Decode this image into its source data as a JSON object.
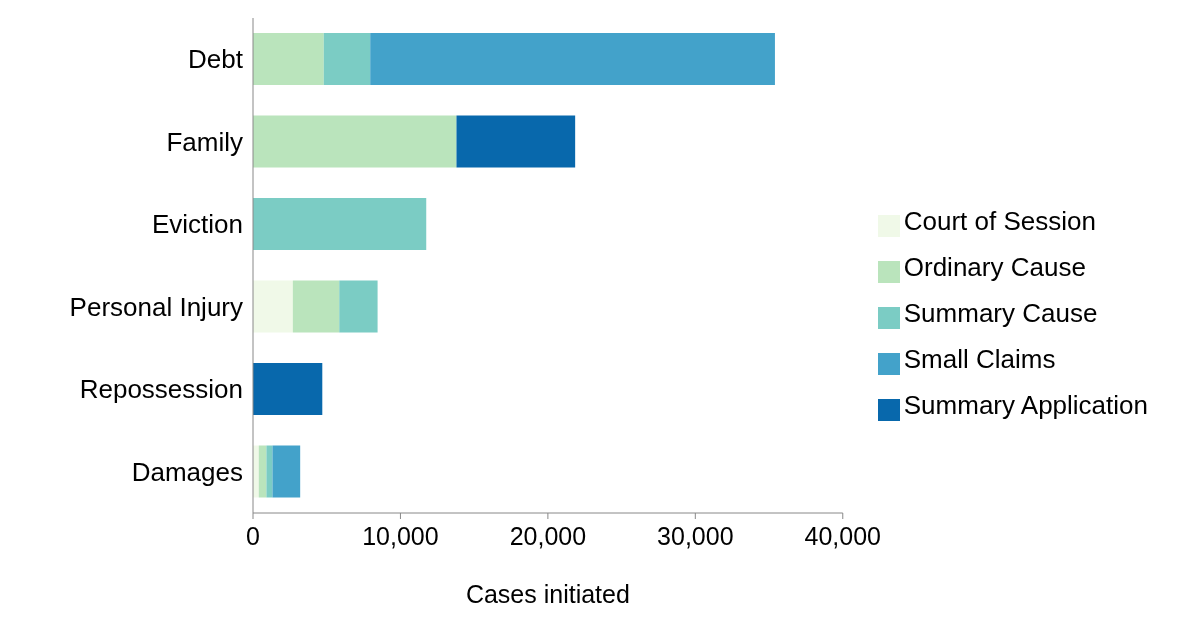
{
  "chart_data": {
    "type": "bar",
    "orientation": "horizontal",
    "stacked": true,
    "xlabel": "Cases initiated",
    "categories": [
      "Debt",
      "Family",
      "Eviction",
      "Personal Injury",
      "Repossession",
      "Damages"
    ],
    "series": [
      {
        "name": "Court of Session",
        "color": "#f0f9e8",
        "values": [
          0,
          null,
          0,
          2700,
          0,
          390
        ]
      },
      {
        "name": "Ordinary Cause",
        "color": "#bae4bc",
        "values": [
          4800,
          13800,
          0,
          3150,
          0,
          520
        ]
      },
      {
        "name": "Summary Cause",
        "color": "#7bccc4",
        "values": [
          3150,
          0,
          11750,
          2600,
          0,
          410
        ]
      },
      {
        "name": "Small Claims",
        "color": "#43a2ca",
        "values": [
          27450,
          0,
          0,
          0,
          0,
          1880
        ]
      },
      {
        "name": "Summary Application",
        "color": "#0868ac",
        "values": [
          0,
          8050,
          0,
          0,
          4700,
          0
        ]
      }
    ],
    "xlim": [
      0,
      40000
    ],
    "xticks": [
      {
        "value": 0,
        "label": "0"
      },
      {
        "value": 10000,
        "label": "10,000"
      },
      {
        "value": 20000,
        "label": "20,000"
      },
      {
        "value": 30000,
        "label": "30,000"
      },
      {
        "value": 40000,
        "label": "40,000"
      }
    ],
    "grid": false,
    "legend": "right"
  }
}
